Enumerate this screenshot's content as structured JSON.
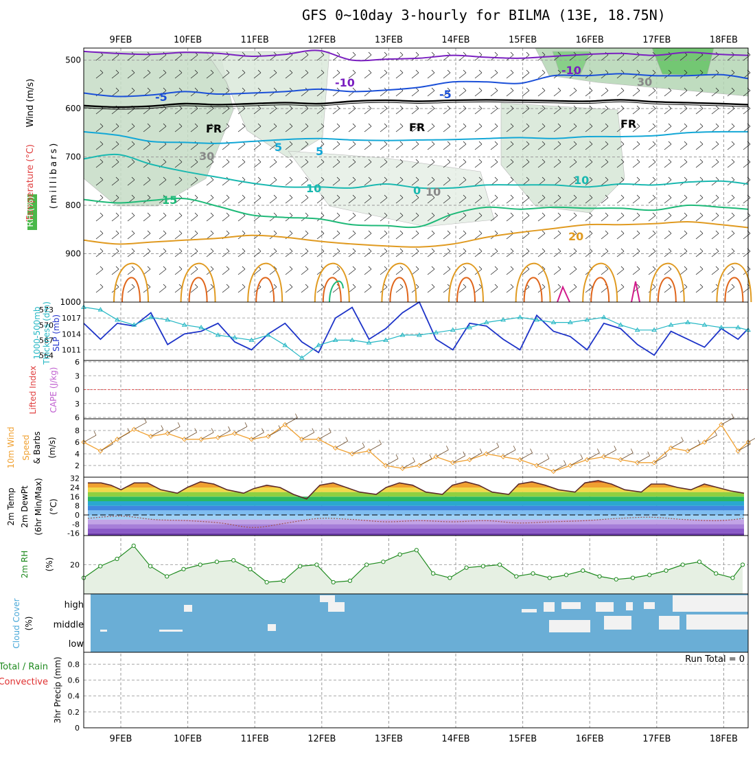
{
  "title": "GFS 0~10day 3-hourly for BILMA (13E, 18.75N)",
  "x_dates": [
    "9FEB",
    "10FEB",
    "11FEB",
    "12FEB",
    "13FEB",
    "14FEB",
    "15FEB",
    "16FEB",
    "17FEB",
    "18FEB"
  ],
  "colors": {
    "temp_violet": "#7a1fc0",
    "temp_blue": "#1a4fd8",
    "temp_cyan": "#12a7d6",
    "temp_teal": "#19b8b0",
    "temp_green": "#1eb978",
    "temp_orange": "#e09a20",
    "temp_dark_orange": "#e0651a",
    "temp_magenta": "#d11a8a",
    "slp": "#1d33c8",
    "thickness": "#24b7c4",
    "wind10m": "#f0a030",
    "rh2m_fill": "#e6f0e3",
    "rh2m_line": "#1e8a1e",
    "cloud_blue": "#6aaed6",
    "cape_line": "#e05050"
  },
  "chart_data": [
    {
      "type": "line",
      "title": "Wind (m/s) / Temperature (°C) / RH (%)",
      "ylabel": "(millibars)",
      "y_ticks": [
        500,
        600,
        700,
        800,
        900,
        1000
      ],
      "ylim": [
        475,
        1000
      ],
      "y_inverted": true,
      "contour_labels": [
        "-10",
        "-5",
        "-5",
        "FR",
        "FR",
        "FR",
        "5",
        "5",
        "-10",
        "10",
        "15",
        "10",
        "0",
        "20",
        "30",
        "30",
        "10"
      ],
      "series": [
        {
          "name": "-10",
          "x": [
            0,
            0.5,
            1,
            1.5,
            2,
            2.5,
            3,
            3.5,
            4,
            4.5,
            5,
            5.5,
            6,
            6.5,
            7,
            7.5,
            8,
            8.5,
            9,
            9.5,
            9.9
          ],
          "values": [
            482,
            486,
            488,
            484,
            486,
            492,
            488,
            480,
            500,
            498,
            496,
            490,
            494,
            496,
            492,
            488,
            486,
            490,
            484,
            488,
            490
          ]
        },
        {
          "name": "-5",
          "x": [
            0,
            0.5,
            1,
            1.5,
            2,
            2.5,
            3,
            3.5,
            4,
            4.5,
            5,
            5.5,
            6,
            6.5,
            7,
            7.5,
            8,
            8.5,
            9,
            9.5,
            9.9
          ],
          "values": [
            568,
            575,
            572,
            565,
            570,
            568,
            565,
            560,
            565,
            562,
            556,
            545,
            545,
            548,
            532,
            532,
            528,
            532,
            532,
            530,
            538
          ]
        },
        {
          "name": "FR",
          "x": [
            0,
            0.5,
            1,
            1.5,
            2,
            2.5,
            3,
            3.5,
            4,
            4.5,
            5,
            5.5,
            6,
            6.5,
            7,
            7.5,
            8,
            8.5,
            9,
            9.5,
            9.9
          ],
          "values": [
            594,
            597,
            595,
            590,
            592,
            590,
            588,
            590,
            585,
            583,
            585,
            583,
            582,
            583,
            584,
            585,
            582,
            586,
            588,
            590,
            592
          ]
        },
        {
          "name": "5",
          "x": [
            0,
            0.5,
            1,
            1.5,
            2,
            2.5,
            3,
            3.5,
            4,
            4.5,
            5,
            5.5,
            6,
            6.5,
            7,
            7.5,
            8,
            8.5,
            9,
            9.5,
            9.9
          ],
          "values": [
            648,
            655,
            668,
            670,
            672,
            668,
            664,
            662,
            665,
            666,
            665,
            664,
            662,
            660,
            662,
            658,
            658,
            656,
            650,
            648,
            648
          ]
        },
        {
          "name": "10",
          "x": [
            0,
            0.5,
            1,
            1.5,
            2,
            2.5,
            3,
            3.5,
            4,
            4.5,
            5,
            5.5,
            6,
            6.5,
            7,
            7.5,
            8,
            8.5,
            9,
            9.5,
            9.9
          ],
          "values": [
            704,
            695,
            715,
            730,
            742,
            754,
            762,
            762,
            764,
            756,
            764,
            764,
            758,
            758,
            758,
            762,
            756,
            758,
            752,
            750,
            756
          ]
        },
        {
          "name": "15",
          "x": [
            0,
            0.5,
            1,
            1.5,
            2,
            2.5,
            3,
            3.5,
            4,
            4.5,
            5,
            5.5,
            6,
            6.5,
            7,
            7.5,
            8,
            8.5,
            9,
            9.5,
            9.9
          ],
          "values": [
            788,
            795,
            790,
            786,
            802,
            820,
            825,
            828,
            840,
            842,
            844,
            818,
            804,
            808,
            804,
            806,
            806,
            810,
            800,
            804,
            808
          ]
        },
        {
          "name": "20",
          "x": [
            0,
            0.5,
            1,
            1.5,
            2,
            2.5,
            3,
            3.5,
            4,
            4.5,
            5,
            5.5,
            6,
            6.5,
            7,
            7.5,
            8,
            8.5,
            9,
            9.5,
            9.9
          ],
          "values": [
            872,
            880,
            876,
            872,
            868,
            862,
            866,
            874,
            880,
            884,
            886,
            880,
            866,
            856,
            848,
            840,
            840,
            838,
            834,
            840,
            846
          ]
        }
      ]
    },
    {
      "type": "line",
      "ylabel": "SLP (mb) / Thickness 1000-500mb (dm)",
      "slp_ticks": [
        1011,
        1014,
        1017
      ],
      "slp_ylim": [
        1009,
        1020
      ],
      "thickness_ticks": [
        564,
        567,
        570,
        573
      ],
      "thickness_ylim": [
        563,
        574.5
      ],
      "series": [
        {
          "name": "SLP",
          "x": [
            0,
            0.25,
            0.5,
            0.75,
            1,
            1.25,
            1.5,
            1.75,
            2,
            2.25,
            2.5,
            2.75,
            3,
            3.25,
            3.5,
            3.75,
            4,
            4.25,
            4.5,
            4.75,
            5,
            5.25,
            5.5,
            5.75,
            6,
            6.25,
            6.5,
            6.75,
            7,
            7.25,
            7.5,
            7.75,
            8,
            8.25,
            8.5,
            8.75,
            9,
            9.25,
            9.5,
            9.75,
            9.9
          ],
          "values": [
            1016,
            1013,
            1016,
            1015.5,
            1018,
            1012,
            1014,
            1014.5,
            1016,
            1012.5,
            1011,
            1014,
            1016,
            1012.5,
            1010.5,
            1017,
            1019,
            1013,
            1015,
            1018,
            1020,
            1013,
            1011,
            1016,
            1015.5,
            1013,
            1011,
            1017.5,
            1014.5,
            1013.5,
            1011,
            1016,
            1015,
            1012,
            1010,
            1014.5,
            1013,
            1011.5,
            1015,
            1013,
            1015
          ]
        },
        {
          "name": "Thickness",
          "x": [
            0,
            0.25,
            0.5,
            0.75,
            1,
            1.25,
            1.5,
            1.75,
            2,
            2.25,
            2.5,
            2.75,
            3,
            3.25,
            3.5,
            3.75,
            4,
            4.25,
            4.5,
            4.75,
            5,
            5.25,
            5.5,
            5.75,
            6,
            6.25,
            6.5,
            6.75,
            7,
            7.25,
            7.5,
            7.75,
            8,
            8.25,
            8.5,
            8.75,
            9,
            9.25,
            9.5,
            9.75,
            9.9
          ],
          "values": [
            573.5,
            573,
            571,
            570,
            571.5,
            571,
            570,
            569.5,
            568,
            567.5,
            567,
            568,
            566,
            563.5,
            566,
            567,
            567,
            566.5,
            567,
            568,
            568,
            568.5,
            569,
            569.5,
            570.5,
            571,
            571.5,
            571,
            570.5,
            570.5,
            571,
            571.5,
            570,
            569,
            569,
            570,
            570.5,
            570,
            569.5,
            569.5,
            569
          ]
        }
      ]
    },
    {
      "type": "line",
      "ylabel": "Lifted Index / CAPE (J/kg)",
      "y_ticks": [
        "6",
        "3",
        "0",
        "3",
        "6"
      ],
      "series": [
        {
          "name": "Lifted Index",
          "values": [
            0,
            0,
            0,
            0,
            0,
            0,
            0,
            0,
            0,
            0
          ]
        }
      ]
    },
    {
      "type": "line",
      "ylabel": "10m Wind Speed & Barbs (m/s)",
      "y_ticks": [
        2,
        4,
        6,
        8
      ],
      "ylim": [
        0,
        10
      ],
      "series": [
        {
          "name": "Wind Speed",
          "x": [
            0,
            0.25,
            0.5,
            0.75,
            1,
            1.25,
            1.5,
            1.75,
            2,
            2.25,
            2.5,
            2.75,
            3,
            3.25,
            3.5,
            3.75,
            4,
            4.25,
            4.5,
            4.75,
            5,
            5.25,
            5.5,
            5.75,
            6,
            6.25,
            6.5,
            6.75,
            7,
            7.25,
            7.5,
            7.75,
            8,
            8.25,
            8.5,
            8.75,
            9,
            9.25,
            9.5,
            9.75,
            9.9
          ],
          "values": [
            6,
            4.5,
            6.5,
            8.2,
            7,
            7.5,
            6.5,
            6.5,
            6.8,
            7.5,
            6.5,
            7,
            9,
            6.5,
            6.5,
            5,
            4,
            4.5,
            2,
            1.5,
            2,
            3.5,
            2.5,
            3,
            4,
            3.5,
            3,
            2,
            1,
            2,
            3,
            3.5,
            3,
            2.5,
            2.5,
            5,
            4.5,
            6,
            9,
            4.5,
            6
          ]
        }
      ]
    },
    {
      "type": "area",
      "ylabel": "2m Temp / 2m DewPt (6hr Min/Max) (°C)",
      "y_ticks": [
        -16,
        -8,
        0,
        8,
        16,
        24,
        32
      ],
      "ylim": [
        -18,
        33
      ],
      "series": [
        {
          "name": "2m Temp",
          "x": [
            0,
            0.2,
            0.35,
            0.5,
            0.7,
            0.9,
            1.1,
            1.35,
            1.5,
            1.7,
            1.9,
            2.1,
            2.35,
            2.5,
            2.7,
            2.9,
            3.1,
            3.3,
            3.5,
            3.7,
            3.9,
            4.1,
            4.35,
            4.5,
            4.7,
            4.9,
            5.1,
            5.35,
            5.5,
            5.7,
            5.9,
            6.1,
            6.35,
            6.5,
            6.7,
            6.9,
            7.1,
            7.35,
            7.5,
            7.7,
            7.9,
            8.1,
            8.35,
            8.5,
            8.7,
            8.9,
            9.1,
            9.3,
            9.5,
            9.7,
            9.9
          ],
          "values": [
            28,
            28,
            26,
            22,
            28,
            28,
            22,
            19,
            24,
            29,
            27,
            22,
            19,
            23,
            26,
            24,
            18,
            14,
            26,
            28,
            24,
            20,
            18,
            24,
            28,
            26,
            20,
            18,
            26,
            29,
            26,
            20,
            18,
            27,
            29,
            26,
            22,
            20,
            28,
            30,
            27,
            22,
            20,
            27,
            27,
            24,
            22,
            27,
            24,
            21,
            19
          ]
        },
        {
          "name": "2m DewPt",
          "x": [
            0,
            0.5,
            1,
            1.5,
            2,
            2.5,
            3,
            3.5,
            4,
            4.5,
            5,
            5.5,
            6,
            6.5,
            7,
            7.5,
            8,
            8.5,
            9,
            9.5,
            9.9
          ],
          "values": [
            -3,
            -1,
            -4,
            -5,
            -7,
            -11,
            -7,
            -3,
            -4,
            -6,
            -5,
            -6,
            -5,
            -7,
            -6,
            -5,
            -3,
            -2,
            -4,
            -5,
            -3
          ]
        }
      ]
    },
    {
      "type": "area",
      "ylabel": "2m RH (%)",
      "y_ticks": [
        20
      ],
      "ylim": [
        0,
        40
      ],
      "series": [
        {
          "name": "2m RH",
          "x": [
            0,
            0.25,
            0.5,
            0.75,
            1,
            1.25,
            1.5,
            1.75,
            2,
            2.25,
            2.5,
            2.75,
            3,
            3.25,
            3.5,
            3.75,
            4,
            4.25,
            4.5,
            4.75,
            5,
            5.25,
            5.5,
            5.75,
            6,
            6.25,
            6.5,
            6.75,
            7,
            7.25,
            7.5,
            7.75,
            8,
            8.25,
            8.5,
            8.75,
            9,
            9.25,
            9.5,
            9.75,
            9.9
          ],
          "values": [
            11,
            19,
            24,
            33,
            19,
            12,
            17,
            20,
            22,
            23,
            17,
            8,
            9,
            19,
            20,
            8,
            9,
            20,
            22,
            27,
            30,
            14,
            11,
            18,
            19,
            20,
            12,
            14,
            11,
            13,
            16,
            12,
            10,
            11,
            13,
            16,
            20,
            22,
            14,
            11,
            20
          ]
        }
      ]
    },
    {
      "type": "heatmap",
      "ylabel": "Cloud Cover (%)",
      "y_ticks": [
        "high",
        "middle",
        "low"
      ]
    },
    {
      "type": "bar",
      "ylabel": "3hr Precip (mm)",
      "y_ticks": [
        0,
        0.2,
        0.4,
        0.6,
        0.8
      ],
      "ylim": [
        0,
        0.95
      ],
      "legend": [
        "Total / Rain",
        "Convective"
      ],
      "annotation": "Run Total = 0",
      "values": [
        0,
        0,
        0,
        0,
        0,
        0,
        0,
        0,
        0,
        0
      ]
    }
  ],
  "labels": {
    "wind_axis": "Wind (m/s)",
    "temp_axis": "Temperature (°C)",
    "rh_axis": "RH (%)",
    "mb_axis": "(millibars)",
    "slp_axis": "SLP (mb)",
    "thick_axis": "Thickness (dm)",
    "thick_axis2": "1000-500mb",
    "li_axis": "Lifted Index",
    "cape_axis": "CAPE (J/kg)",
    "wind10_axis": "10m Wind",
    "wind10_axis2": "Speed",
    "wind10_axis3": "& Barbs",
    "wind10_unit": "(m/s)",
    "t2m_axis": "2m Temp",
    "t2m_axis2": "2m DewPt",
    "t2m_axis3": "(6hr Min/Max)",
    "t2m_unit": "(°C)",
    "rh2m_axis": "2m RH",
    "rh2m_unit": "(%)",
    "cloud_axis": "Cloud Cover",
    "cloud_unit": "(%)",
    "precip_axis": "3hr Precip (mm)",
    "precip_legend1": "Total / Rain",
    "precip_legend2": "Convective",
    "run_total": "Run Total = 0"
  }
}
